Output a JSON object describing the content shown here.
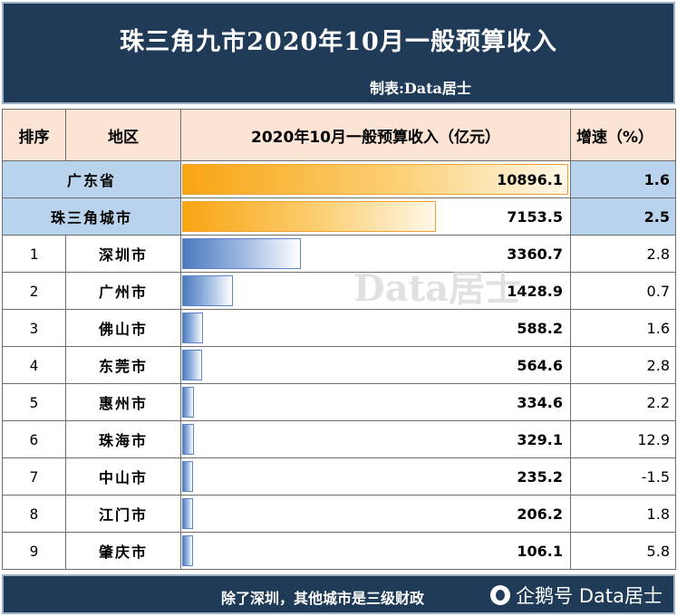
{
  "header": {
    "title": "珠三角九市2020年10月一般预算收入",
    "credit": "制表:Data居士"
  },
  "table": {
    "col_rank": "排序",
    "col_region": "地区",
    "col_value": "2020年10月一般预算收入（亿元）",
    "col_rate": "增速（%）"
  },
  "chart_data": {
    "type": "bar",
    "title": "珠三角九市2020年10月一般预算收入",
    "ylabel": "2020年10月一般预算收入（亿元）",
    "summary": [
      {
        "region": "广东省",
        "value": 10896.1,
        "value_text": "10896.1",
        "rate": "1.6"
      },
      {
        "region": "珠三角城市",
        "value": 7153.5,
        "value_text": "7153.5",
        "rate": "2.5"
      }
    ],
    "rows": [
      {
        "rank": "1",
        "region": "深圳市",
        "value": 3360.7,
        "value_text": "3360.7",
        "rate": "2.8"
      },
      {
        "rank": "2",
        "region": "广州市",
        "value": 1428.9,
        "value_text": "1428.9",
        "rate": "0.7"
      },
      {
        "rank": "3",
        "region": "佛山市",
        "value": 588.2,
        "value_text": "588.2",
        "rate": "1.6"
      },
      {
        "rank": "4",
        "region": "东莞市",
        "value": 564.6,
        "value_text": "564.6",
        "rate": "2.8"
      },
      {
        "rank": "5",
        "region": "惠州市",
        "value": 334.6,
        "value_text": "334.6",
        "rate": "2.2"
      },
      {
        "rank": "6",
        "region": "珠海市",
        "value": 329.1,
        "value_text": "329.1",
        "rate": "12.9"
      },
      {
        "rank": "7",
        "region": "中山市",
        "value": 235.2,
        "value_text": "235.2",
        "rate": "-1.5"
      },
      {
        "rank": "8",
        "region": "江门市",
        "value": 206.2,
        "value_text": "206.2",
        "rate": "1.8"
      },
      {
        "rank": "9",
        "region": "肇庆市",
        "value": 106.1,
        "value_text": "106.1",
        "rate": "5.8"
      }
    ]
  },
  "watermark": "Data居士",
  "footer": {
    "note": "除了深圳，其他城市是三级财政",
    "source": "企鹅号 Data居士",
    "source_icon": "penguin-icon"
  },
  "colors": {
    "header_bg": "#1f3b57",
    "summary_bg": "#b9d3ec",
    "header_row_bg": "#fbe4d3",
    "bar_orange": "#f8a513",
    "bar_blue": "#4c7ac0"
  }
}
